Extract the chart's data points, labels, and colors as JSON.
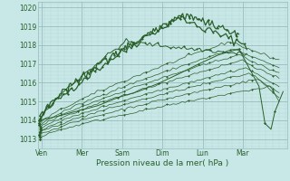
{
  "xlabel": "Pression niveau de la mer( hPa )",
  "bg_color": "#c8e8e8",
  "grid_major_color": "#99bbbb",
  "grid_minor_color": "#b8d8d8",
  "line_color": "#2a5f2a",
  "ylim": [
    1012.5,
    1020.3
  ],
  "yticks": [
    1013,
    1014,
    1015,
    1016,
    1017,
    1018,
    1019,
    1020
  ],
  "xlim": [
    0,
    6.2
  ],
  "xtick_labels": [
    "Ven",
    "Mer",
    "Sam",
    "Dim",
    "Lun",
    "Mar"
  ],
  "xtick_positions": [
    0.1,
    1.1,
    2.1,
    3.1,
    4.1,
    5.1
  ],
  "figsize": [
    3.2,
    2.0
  ],
  "dpi": 100
}
